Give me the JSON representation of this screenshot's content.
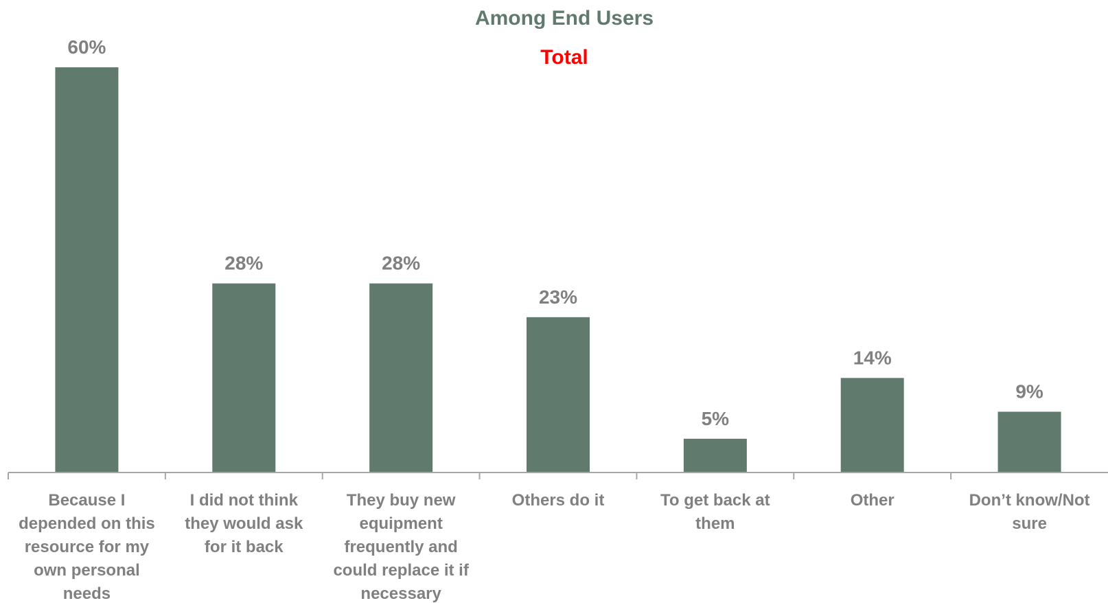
{
  "chart_data": {
    "type": "bar",
    "title": "Among End Users",
    "subtitle": "Total",
    "categories": [
      [
        "Because I",
        "depended on this",
        "resource for my",
        "own personal",
        "needs"
      ],
      [
        "I did not think",
        "they would ask",
        "for it back"
      ],
      [
        "They buy new",
        "equipment",
        "frequently and",
        "could replace it if",
        "necessary"
      ],
      [
        "Others do it"
      ],
      [
        "To get back at",
        "them"
      ],
      [
        "Other"
      ],
      [
        "Don’t know/Not",
        "sure"
      ]
    ],
    "values": [
      60,
      28,
      28,
      23,
      5,
      14,
      9
    ],
    "value_labels": [
      "60%",
      "28%",
      "28%",
      "23%",
      "5%",
      "14%",
      "9%"
    ],
    "unit": "%",
    "ylim": [
      0,
      60
    ],
    "grid": false,
    "colors": {
      "bar": "#617a6e",
      "title": "#617a6e",
      "subtitle": "#ff0000",
      "labels": "#808080",
      "axis": "#a6a6a6"
    }
  }
}
